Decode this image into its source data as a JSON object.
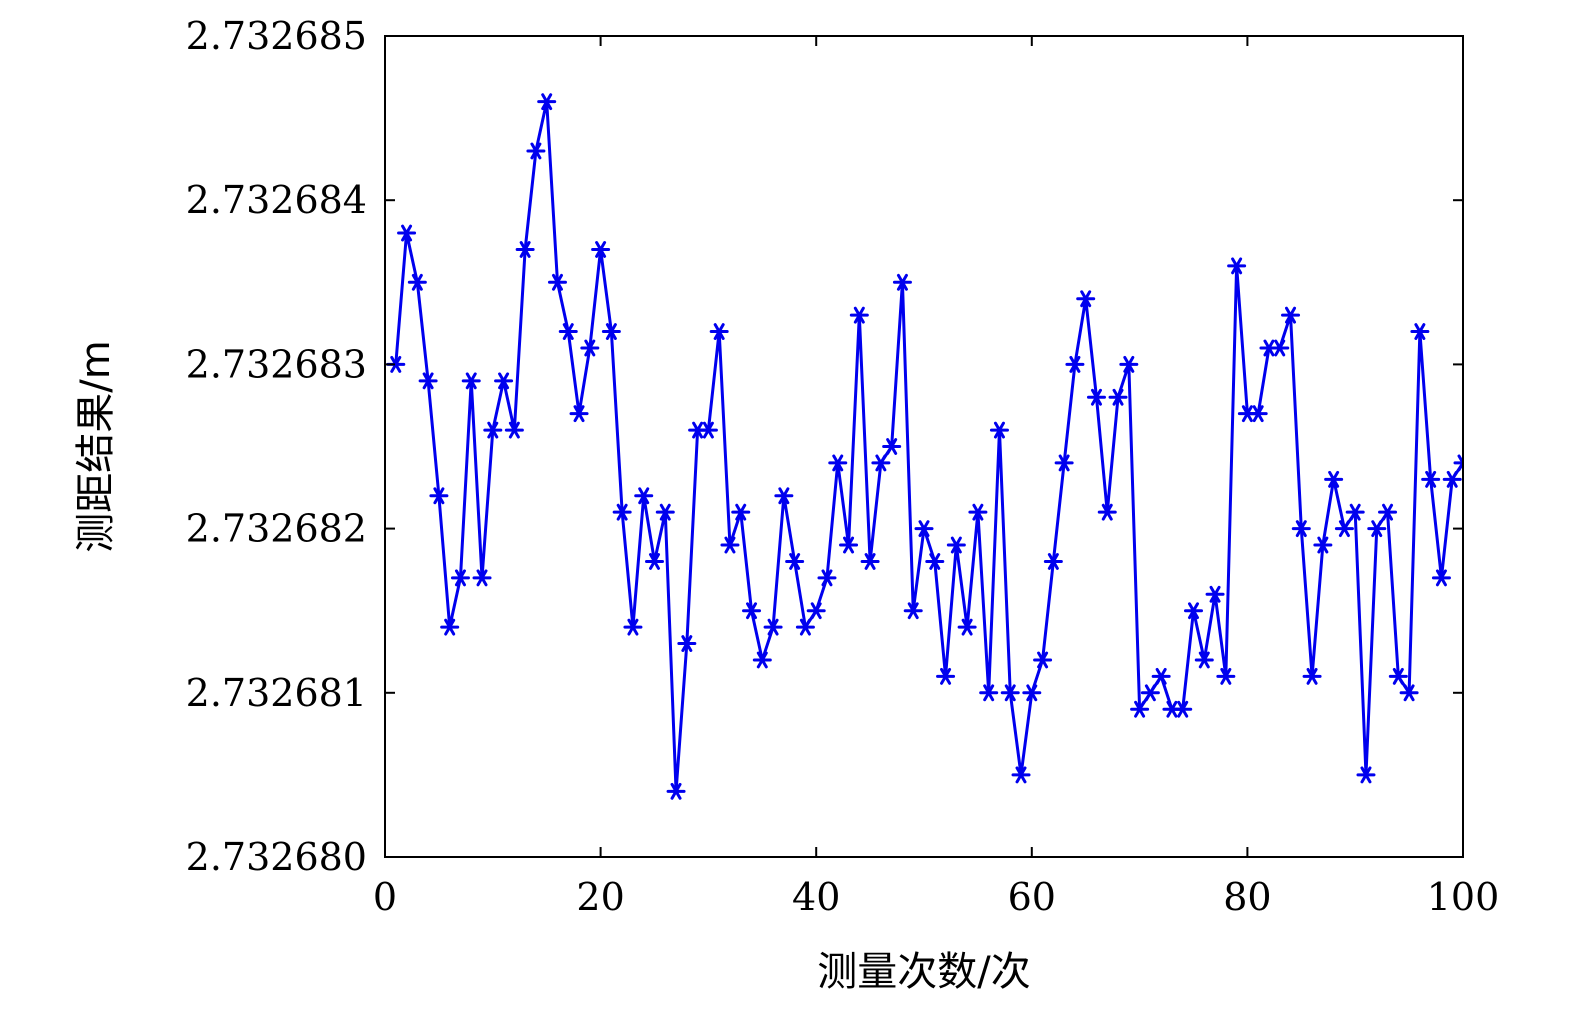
{
  "chart_data": {
    "type": "line",
    "xlabel": "测量次数/次",
    "ylabel": "测距结果/m",
    "xlim": [
      0,
      100
    ],
    "ylim": [
      2.73268,
      2.732685
    ],
    "x_ticks": [
      "0",
      "20",
      "40",
      "60",
      "80",
      "100"
    ],
    "y_ticks": [
      "2.732680",
      "2.732681",
      "2.732682",
      "2.732683",
      "2.732684",
      "2.732685"
    ],
    "grid": false,
    "marker": "asterisk",
    "color": "#0000ee",
    "x": [
      1,
      2,
      3,
      4,
      5,
      6,
      7,
      8,
      9,
      10,
      11,
      12,
      13,
      14,
      15,
      16,
      17,
      18,
      19,
      20,
      21,
      22,
      23,
      24,
      25,
      26,
      27,
      28,
      29,
      30,
      31,
      32,
      33,
      34,
      35,
      36,
      37,
      38,
      39,
      40,
      41,
      42,
      43,
      44,
      45,
      46,
      47,
      48,
      49,
      50,
      51,
      52,
      53,
      54,
      55,
      56,
      57,
      58,
      59,
      60,
      61,
      62,
      63,
      64,
      65,
      66,
      67,
      68,
      69,
      70,
      71,
      72,
      73,
      74,
      75,
      76,
      77,
      78,
      79,
      80,
      81,
      82,
      83,
      84,
      85,
      86,
      87,
      88,
      89,
      90,
      91,
      92,
      93,
      94,
      95,
      96,
      97,
      98,
      99,
      100
    ],
    "y": [
      2.732683,
      2.7326838,
      2.7326835,
      2.7326829,
      2.7326822,
      2.7326814,
      2.7326817,
      2.7326829,
      2.7326817,
      2.7326826,
      2.7326829,
      2.7326826,
      2.7326837,
      2.7326843,
      2.7326846,
      2.7326835,
      2.7326832,
      2.7326827,
      2.7326831,
      2.7326837,
      2.7326832,
      2.7326821,
      2.7326814,
      2.7326822,
      2.7326818,
      2.7326821,
      2.7326804,
      2.7326813,
      2.7326826,
      2.7326826,
      2.7326832,
      2.7326819,
      2.7326821,
      2.7326815,
      2.7326812,
      2.7326814,
      2.7326822,
      2.7326818,
      2.7326814,
      2.7326815,
      2.7326817,
      2.7326824,
      2.7326819,
      2.7326833,
      2.7326818,
      2.7326824,
      2.7326825,
      2.7326835,
      2.7326815,
      2.732682,
      2.7326818,
      2.7326811,
      2.7326819,
      2.7326814,
      2.7326821,
      2.732681,
      2.7326826,
      2.732681,
      2.7326805,
      2.732681,
      2.7326812,
      2.7326818,
      2.7326824,
      2.732683,
      2.7326834,
      2.7326828,
      2.7326821,
      2.7326828,
      2.732683,
      2.7326809,
      2.732681,
      2.7326811,
      2.7326809,
      2.7326809,
      2.7326815,
      2.7326812,
      2.7326816,
      2.7326811,
      2.7326836,
      2.7326827,
      2.7326827,
      2.7326831,
      2.7326831,
      2.7326833,
      2.732682,
      2.7326811,
      2.7326819,
      2.7326823,
      2.732682,
      2.7326821,
      2.7326805,
      2.732682,
      2.7326821,
      2.7326811,
      2.732681,
      2.7326832,
      2.7326823,
      2.7326817,
      2.7326823,
      2.7326824
    ]
  }
}
